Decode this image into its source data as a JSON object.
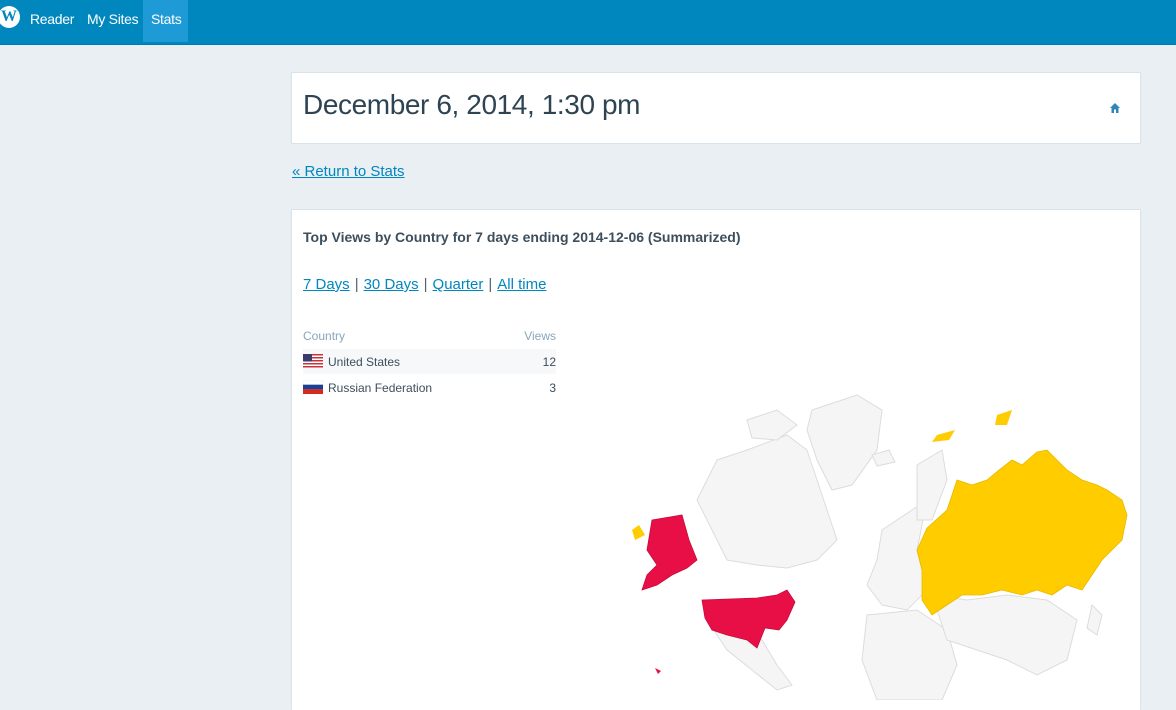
{
  "masterbar": {
    "logo_icon": "wordpress-logo-icon",
    "items": [
      {
        "label": "Reader"
      },
      {
        "label": "My Sites"
      },
      {
        "label": "Stats"
      }
    ]
  },
  "header": {
    "title": "December 6, 2014, 1:30 pm",
    "home_icon": "home-icon"
  },
  "return_link": "« Return to Stats",
  "card": {
    "title": "Top Views by Country for 7 days ending 2014-12-06 (Summarized)",
    "periods": [
      {
        "label": "7 Days"
      },
      {
        "label": "30 Days"
      },
      {
        "label": "Quarter"
      },
      {
        "label": "All time"
      }
    ],
    "table": {
      "col_country": "Country",
      "col_views": "Views",
      "rows": [
        {
          "flag": "us-flag-icon",
          "country": "United States",
          "views": "12"
        },
        {
          "flag": "ru-flag-icon",
          "country": "Russian Federation",
          "views": "3"
        }
      ]
    }
  },
  "colors": {
    "masterbar": "#0087be",
    "active_tab": "#1e9ad6",
    "link": "#0087be",
    "map_high": "#e80f46",
    "map_low": "#ffcc00",
    "map_land": "#f5f5f5"
  }
}
